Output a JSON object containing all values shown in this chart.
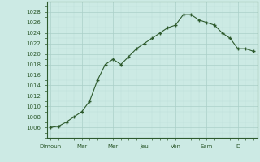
{
  "x_values": [
    0,
    1,
    2,
    3,
    4,
    5,
    6,
    7,
    8,
    9,
    10,
    11,
    12,
    13,
    14,
    15,
    16,
    17,
    18,
    19,
    20,
    21,
    22,
    23,
    24,
    25,
    26
  ],
  "y_values": [
    1006,
    1006.2,
    1007,
    1008,
    1009,
    1011,
    1015,
    1018,
    1019,
    1018,
    1019.5,
    1021,
    1022,
    1023,
    1024,
    1025,
    1025.5,
    1027.5,
    1027.5,
    1026.5,
    1026,
    1025.5,
    1024,
    1023,
    1021,
    1021,
    1020.5
  ],
  "x_tick_positions": [
    0,
    4,
    8,
    12,
    16,
    20,
    24
  ],
  "x_tick_labels": [
    "Dimoun",
    "Mar",
    "Mer",
    "Jeu",
    "Ven",
    "Sam",
    "D"
  ],
  "y_min": 1004,
  "y_max": 1030,
  "y_ticks": [
    1006,
    1008,
    1010,
    1012,
    1014,
    1016,
    1018,
    1020,
    1022,
    1024,
    1026,
    1028
  ],
  "line_color": "#2d5a2d",
  "marker_color": "#2d5a2d",
  "bg_color": "#cceae4",
  "grid_major_color": "#aacfc8",
  "grid_minor_color": "#bbddd8",
  "spine_color": "#2d5a2d",
  "tick_label_color": "#2d5a2d",
  "figsize": [
    3.2,
    2.0
  ],
  "dpi": 100
}
